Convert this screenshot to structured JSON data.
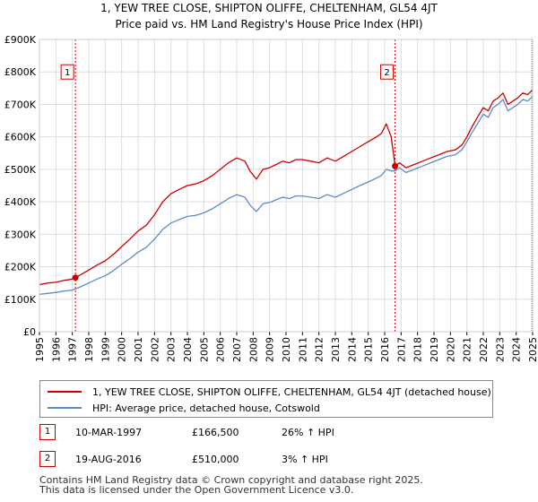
{
  "title": {
    "line1": "1, YEW TREE CLOSE, SHIPTON OLIFFE, CHELTENHAM, GL54 4JT",
    "line2": "Price paid vs. HM Land Registry's House Price Index (HPI)"
  },
  "colors": {
    "property": "#cc0000",
    "hpi": "#5b8dc8",
    "grid": "#dddddd",
    "vline": "#cc0000"
  },
  "chart_data": {
    "type": "line",
    "title": "1, YEW TREE CLOSE, SHIPTON OLIFFE, CHELTENHAM, GL54 4JT — Price paid vs. HM Land Registry's House Price Index (HPI)",
    "xlabel": "",
    "ylabel": "",
    "xlim": [
      1995,
      2025
    ],
    "ylim": [
      0,
      900000
    ],
    "grid": true,
    "y_ticks": [
      {
        "value": 0,
        "label": "£0"
      },
      {
        "value": 100000,
        "label": "£100K"
      },
      {
        "value": 200000,
        "label": "£200K"
      },
      {
        "value": 300000,
        "label": "£300K"
      },
      {
        "value": 400000,
        "label": "£400K"
      },
      {
        "value": 500000,
        "label": "£500K"
      },
      {
        "value": 600000,
        "label": "£600K"
      },
      {
        "value": 700000,
        "label": "£700K"
      },
      {
        "value": 800000,
        "label": "£800K"
      },
      {
        "value": 900000,
        "label": "£900K"
      }
    ],
    "x_ticks": [
      "1995",
      "1996",
      "1997",
      "1998",
      "1999",
      "2000",
      "2001",
      "2002",
      "2003",
      "2004",
      "2005",
      "2006",
      "2007",
      "2008",
      "2009",
      "2010",
      "2011",
      "2012",
      "2013",
      "2014",
      "2015",
      "2016",
      "2017",
      "2018",
      "2019",
      "2020",
      "2021",
      "2022",
      "2023",
      "2024",
      "2025"
    ],
    "series": [
      {
        "name": "1, YEW TREE CLOSE, SHIPTON OLIFFE, CHELTENHAM, GL54 4JT (detached house)",
        "x": [
          1995.0,
          1995.5,
          1996.0,
          1996.5,
          1997.0,
          1997.19,
          1997.5,
          1998.0,
          1998.5,
          1999.0,
          1999.5,
          2000.0,
          2000.5,
          2001.0,
          2001.5,
          2002.0,
          2002.5,
          2003.0,
          2003.5,
          2004.0,
          2004.5,
          2005.0,
          2005.5,
          2006.0,
          2006.5,
          2007.0,
          2007.5,
          2007.8,
          2008.2,
          2008.6,
          2009.0,
          2009.4,
          2009.8,
          2010.2,
          2010.6,
          2011.0,
          2011.5,
          2012.0,
          2012.5,
          2013.0,
          2013.5,
          2014.0,
          2014.5,
          2015.0,
          2015.5,
          2015.8,
          2016.1,
          2016.4,
          2016.63,
          2016.9,
          2017.3,
          2017.8,
          2018.3,
          2018.8,
          2019.3,
          2019.8,
          2020.3,
          2020.7,
          2021.0,
          2021.3,
          2021.7,
          2022.0,
          2022.3,
          2022.6,
          2022.9,
          2023.2,
          2023.5,
          2023.8,
          2024.1,
          2024.4,
          2024.7,
          2025.0
        ],
        "y": [
          145000,
          150000,
          152000,
          158000,
          162000,
          166500,
          175000,
          190000,
          205000,
          218000,
          238000,
          262000,
          285000,
          310000,
          328000,
          360000,
          400000,
          425000,
          438000,
          450000,
          455000,
          465000,
          480000,
          500000,
          520000,
          535000,
          525000,
          495000,
          470000,
          500000,
          505000,
          515000,
          525000,
          520000,
          530000,
          530000,
          525000,
          520000,
          535000,
          525000,
          540000,
          555000,
          570000,
          585000,
          600000,
          610000,
          640000,
          600000,
          510000,
          520000,
          505000,
          515000,
          525000,
          535000,
          545000,
          555000,
          560000,
          575000,
          600000,
          630000,
          665000,
          690000,
          680000,
          710000,
          720000,
          735000,
          700000,
          710000,
          720000,
          735000,
          730000,
          745000
        ]
      },
      {
        "name": "HPI: Average price, detached house, Cotswold",
        "x": [
          1995.0,
          1995.5,
          1996.0,
          1996.5,
          1997.0,
          1997.19,
          1997.5,
          1998.0,
          1998.5,
          1999.0,
          1999.5,
          2000.0,
          2000.5,
          2001.0,
          2001.5,
          2002.0,
          2002.5,
          2003.0,
          2003.5,
          2004.0,
          2004.5,
          2005.0,
          2005.5,
          2006.0,
          2006.5,
          2007.0,
          2007.5,
          2007.8,
          2008.2,
          2008.6,
          2009.0,
          2009.4,
          2009.8,
          2010.2,
          2010.6,
          2011.0,
          2011.5,
          2012.0,
          2012.5,
          2013.0,
          2013.5,
          2014.0,
          2014.5,
          2015.0,
          2015.5,
          2015.8,
          2016.1,
          2016.4,
          2016.63,
          2016.9,
          2017.3,
          2017.8,
          2018.3,
          2018.8,
          2019.3,
          2019.8,
          2020.3,
          2020.7,
          2021.0,
          2021.3,
          2021.7,
          2022.0,
          2022.3,
          2022.6,
          2022.9,
          2023.2,
          2023.5,
          2023.8,
          2024.1,
          2024.4,
          2024.7,
          2025.0
        ],
        "y": [
          115000,
          118000,
          121000,
          125000,
          128000,
          132000,
          138000,
          150000,
          162000,
          172000,
          188000,
          208000,
          225000,
          245000,
          260000,
          285000,
          315000,
          335000,
          345000,
          355000,
          358000,
          366000,
          378000,
          394000,
          410000,
          422000,
          414000,
          390000,
          370000,
          394000,
          398000,
          406000,
          414000,
          410000,
          418000,
          418000,
          414000,
          410000,
          422000,
          414000,
          426000,
          438000,
          450000,
          461000,
          473000,
          481000,
          500000,
          495000,
          495000,
          505000,
          490000,
          500000,
          510000,
          520000,
          530000,
          540000,
          545000,
          560000,
          585000,
          612000,
          645000,
          670000,
          660000,
          690000,
          700000,
          715000,
          680000,
          690000,
          700000,
          715000,
          710000,
          725000
        ]
      }
    ],
    "annotations": [
      {
        "label": "1",
        "x": 1997.19,
        "y": 166500
      },
      {
        "label": "2",
        "x": 2016.63,
        "y": 510000
      }
    ]
  },
  "legend": {
    "property": "1, YEW TREE CLOSE, SHIPTON OLIFFE, CHELTENHAM, GL54 4JT (detached house)",
    "hpi": "HPI: Average price, detached house, Cotswold"
  },
  "transactions": [
    {
      "num": "1",
      "date": "10-MAR-1997",
      "price": "£166,500",
      "hpi": "26% ↑ HPI"
    },
    {
      "num": "2",
      "date": "19-AUG-2016",
      "price": "£510,000",
      "hpi": "3% ↑ HPI"
    }
  ],
  "footer": {
    "line1": "Contains HM Land Registry data © Crown copyright and database right 2025.",
    "line2": "This data is licensed under the Open Government Licence v3.0."
  }
}
